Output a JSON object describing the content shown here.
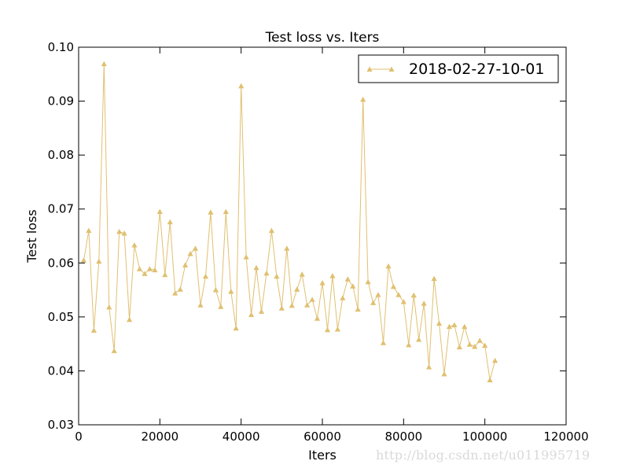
{
  "chart_data": {
    "type": "line",
    "title": "Test loss  vs. Iters",
    "xlabel": "Iters",
    "ylabel": "Test loss",
    "xlim": [
      0,
      120000
    ],
    "ylim": [
      0.03,
      0.1
    ],
    "xticks": [
      0,
      20000,
      40000,
      60000,
      80000,
      100000,
      120000
    ],
    "xtick_labels": [
      "0",
      "20000",
      "40000",
      "60000",
      "80000",
      "100000",
      "120000"
    ],
    "yticks": [
      0.03,
      0.04,
      0.05,
      0.06,
      0.07,
      0.08,
      0.09,
      0.1
    ],
    "ytick_labels": [
      "0.03",
      "0.04",
      "0.05",
      "0.06",
      "0.07",
      "0.08",
      "0.09",
      "0.10"
    ],
    "grid": false,
    "legend_position": "top-right",
    "series": [
      {
        "name": "2018-02-27-10-01",
        "color": "#e0c070",
        "marker": "triangle-up",
        "x": [
          1250,
          2500,
          3750,
          5000,
          6250,
          7500,
          8750,
          10000,
          11250,
          12500,
          13750,
          15000,
          16250,
          17500,
          18750,
          20000,
          21250,
          22500,
          23750,
          25000,
          26250,
          27500,
          28750,
          30000,
          31250,
          32500,
          33750,
          35000,
          36250,
          37500,
          38750,
          40000,
          41250,
          42500,
          43750,
          45000,
          46250,
          47500,
          48750,
          50000,
          51250,
          52500,
          53750,
          55000,
          56250,
          57500,
          58750,
          60000,
          61250,
          62500,
          63750,
          65000,
          66250,
          67500,
          68750,
          70000,
          71250,
          72500,
          73750,
          75000,
          76250,
          77500,
          78750,
          80000,
          81250,
          82500,
          83750,
          85000,
          86250,
          87500,
          88750,
          90000,
          91250,
          92500,
          93750,
          95000,
          96250,
          97500,
          98750,
          100000,
          101250,
          102500
        ],
        "y": [
          0.0605,
          0.066,
          0.0475,
          0.0603,
          0.0969,
          0.0518,
          0.0437,
          0.0658,
          0.0655,
          0.0495,
          0.0633,
          0.0589,
          0.058,
          0.0589,
          0.0587,
          0.0695,
          0.0578,
          0.0676,
          0.0544,
          0.0551,
          0.0596,
          0.0617,
          0.0627,
          0.0522,
          0.0575,
          0.0694,
          0.055,
          0.0519,
          0.0695,
          0.0547,
          0.0479,
          0.0928,
          0.0611,
          0.0504,
          0.0591,
          0.051,
          0.0581,
          0.066,
          0.0575,
          0.0516,
          0.0627,
          0.0521,
          0.0551,
          0.0579,
          0.0522,
          0.0532,
          0.0497,
          0.0563,
          0.0476,
          0.0576,
          0.0477,
          0.0535,
          0.057,
          0.0557,
          0.0514,
          0.0903,
          0.0565,
          0.0526,
          0.0541,
          0.0452,
          0.0594,
          0.0556,
          0.0541,
          0.0528,
          0.0448,
          0.054,
          0.0458,
          0.0525,
          0.0407,
          0.0571,
          0.0488,
          0.0394,
          0.0482,
          0.0485,
          0.0444,
          0.0482,
          0.0449,
          0.0445,
          0.0456,
          0.0447,
          0.0383,
          0.0419
        ]
      }
    ]
  },
  "watermark": "http://blog.csdn.net/u011995719"
}
